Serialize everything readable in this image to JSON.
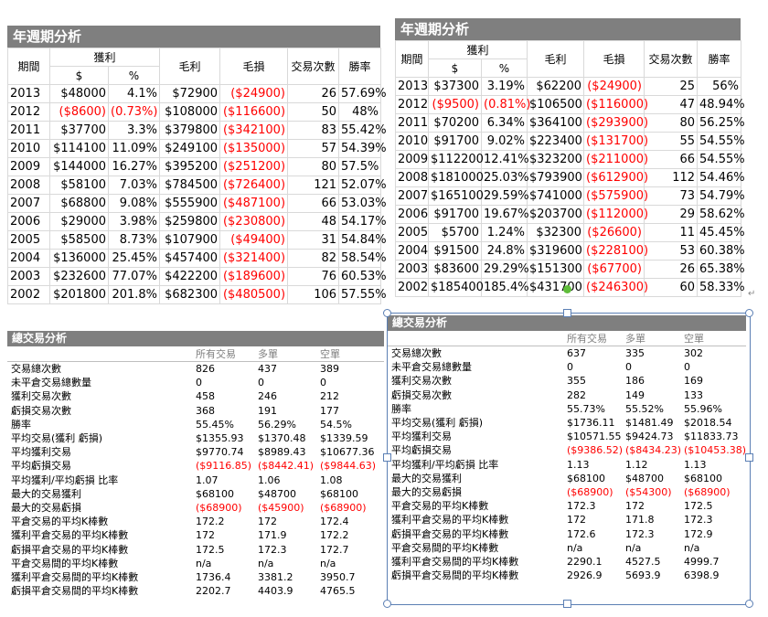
{
  "annual_left": {
    "title": "年週期分析",
    "headers": {
      "period": "期間",
      "profit": "獲利",
      "dollar": "$",
      "pct": "%",
      "gross_profit": "毛利",
      "gross_loss": "毛損",
      "trades": "交易次數",
      "win_rate": "勝率"
    },
    "rows": [
      [
        "2013",
        "$48000",
        "4.1%",
        "$72900",
        "($24900)",
        "26",
        "57.69%"
      ],
      [
        "2012",
        "($8600)",
        "(0.73%)",
        "$108000",
        "($116600)",
        "50",
        "48%"
      ],
      [
        "2011",
        "$37700",
        "3.3%",
        "$379800",
        "($342100)",
        "83",
        "55.42%"
      ],
      [
        "2010",
        "$114100",
        "11.09%",
        "$249100",
        "($135000)",
        "57",
        "54.39%"
      ],
      [
        "2009",
        "$144000",
        "16.27%",
        "$395200",
        "($251200)",
        "80",
        "57.5%"
      ],
      [
        "2008",
        "$58100",
        "7.03%",
        "$784500",
        "($726400)",
        "121",
        "52.07%"
      ],
      [
        "2007",
        "$68800",
        "9.08%",
        "$555900",
        "($487100)",
        "66",
        "53.03%"
      ],
      [
        "2006",
        "$29000",
        "3.98%",
        "$259800",
        "($230800)",
        "48",
        "54.17%"
      ],
      [
        "2005",
        "$58500",
        "8.73%",
        "$107900",
        "($49400)",
        "31",
        "54.84%"
      ],
      [
        "2004",
        "$136000",
        "25.45%",
        "$457400",
        "($321400)",
        "82",
        "58.54%"
      ],
      [
        "2003",
        "$232600",
        "77.07%",
        "$422200",
        "($189600)",
        "76",
        "60.53%"
      ],
      [
        "2002",
        "$201800",
        "201.8%",
        "$682300",
        "($480500)",
        "106",
        "57.55%"
      ]
    ]
  },
  "annual_right": {
    "title": "年週期分析",
    "headers": {
      "period": "期間",
      "profit": "獲利",
      "dollar": "$",
      "pct": "%",
      "gross_profit": "毛利",
      "gross_loss": "毛損",
      "trades": "交易次數",
      "win_rate": "勝率"
    },
    "rows": [
      [
        "2013",
        "$37300",
        "3.19%",
        "$62200",
        "($24900)",
        "25",
        "56%"
      ],
      [
        "2012",
        "($9500)",
        "(0.81%)",
        "$106500",
        "($116000)",
        "47",
        "48.94%"
      ],
      [
        "2011",
        "$70200",
        "6.34%",
        "$364100",
        "($293900)",
        "80",
        "56.25%"
      ],
      [
        "2010",
        "$91700",
        "9.02%",
        "$223400",
        "($131700)",
        "55",
        "54.55%"
      ],
      [
        "2009",
        "$112200",
        "12.41%",
        "$323200",
        "($211000)",
        "66",
        "54.55%"
      ],
      [
        "2008",
        "$181000",
        "25.03%",
        "$793900",
        "($612900)",
        "112",
        "54.46%"
      ],
      [
        "2007",
        "$165100",
        "29.59%",
        "$741000",
        "($575900)",
        "73",
        "54.79%"
      ],
      [
        "2006",
        "$91700",
        "19.67%",
        "$203700",
        "($112000)",
        "29",
        "58.62%"
      ],
      [
        "2005",
        "$5700",
        "1.24%",
        "$32300",
        "($26600)",
        "11",
        "45.45%"
      ],
      [
        "2004",
        "$91500",
        "24.8%",
        "$319600",
        "($228100)",
        "53",
        "60.38%"
      ],
      [
        "2003",
        "$83600",
        "29.29%",
        "$151300",
        "($67700)",
        "26",
        "65.38%"
      ],
      [
        "2002",
        "$185400",
        "185.4%",
        "$431700",
        "($246300)",
        "60",
        "58.33%"
      ]
    ]
  },
  "total_left": {
    "title": "總交易分析",
    "cols": [
      "所有交易",
      "多單",
      "空單"
    ],
    "rows": [
      [
        "交易總次數",
        "826",
        "437",
        "389"
      ],
      [
        "未平倉交易總數量",
        "0",
        "0",
        "0"
      ],
      [
        "獲利交易次數",
        "458",
        "246",
        "212"
      ],
      [
        "虧損交易次數",
        "368",
        "191",
        "177"
      ],
      [
        "勝率",
        "55.45%",
        "56.29%",
        "54.5%"
      ],
      [
        "平均交易(獲利 虧損)",
        "$1355.93",
        "$1370.48",
        "$1339.59"
      ],
      [
        "平均獲利交易",
        "$9770.74",
        "$8989.43",
        "$10677.36"
      ],
      [
        "平均虧損交易",
        "($9116.85)",
        "($8442.41)",
        "($9844.63)"
      ],
      [
        "平均獲利/平均虧損 比率",
        "1.07",
        "1.06",
        "1.08"
      ],
      [
        "最大的交易獲利",
        "$68100",
        "$48700",
        "$68100"
      ],
      [
        "最大的交易虧損",
        "($68900)",
        "($45900)",
        "($68900)"
      ],
      [
        "平倉交易的平均K棒數",
        "172.2",
        "172",
        "172.4"
      ],
      [
        "獲利平倉交易的平均K棒數",
        "172",
        "171.9",
        "172.2"
      ],
      [
        "虧損平倉交易的平均K棒數",
        "172.5",
        "172.3",
        "172.7"
      ],
      [
        "平倉交易間的平均K棒數",
        "n/a",
        "n/a",
        "n/a"
      ],
      [
        "獲利平倉交易間的平均K棒數",
        "1736.4",
        "3381.2",
        "3950.7"
      ],
      [
        "虧損平倉交易間的平均K棒數",
        "2202.7",
        "4403.9",
        "4765.5"
      ]
    ]
  },
  "total_right": {
    "title": "總交易分析",
    "cols": [
      "所有交易",
      "多單",
      "空單"
    ],
    "rows": [
      [
        "交易總次數",
        "637",
        "335",
        "302"
      ],
      [
        "未平倉交易總數量",
        "0",
        "0",
        "0"
      ],
      [
        "獲利交易次數",
        "355",
        "186",
        "169"
      ],
      [
        "虧損交易次數",
        "282",
        "149",
        "133"
      ],
      [
        "勝率",
        "55.73%",
        "55.52%",
        "55.96%"
      ],
      [
        "平均交易(獲利 虧損)",
        "$1736.11",
        "$1481.49",
        "$2018.54"
      ],
      [
        "平均獲利交易",
        "$10571.55",
        "$9424.73",
        "$11833.73"
      ],
      [
        "平均虧損交易",
        "($9386.52)",
        "($8434.23)",
        "($10453.38)"
      ],
      [
        "平均獲利/平均虧損 比率",
        "1.13",
        "1.12",
        "1.13"
      ],
      [
        "最大的交易獲利",
        "$68100",
        "$48700",
        "$68100"
      ],
      [
        "最大的交易虧損",
        "($68900)",
        "($54300)",
        "($68900)"
      ],
      [
        "平倉交易的平均K棒數",
        "172.3",
        "172",
        "172.5"
      ],
      [
        "獲利平倉交易的平均K棒數",
        "172",
        "171.8",
        "172.3"
      ],
      [
        "虧損平倉交易的平均K棒數",
        "172.6",
        "172.3",
        "172.9"
      ],
      [
        "平倉交易間的平均K棒數",
        "n/a",
        "n/a",
        "n/a"
      ],
      [
        "獲利平倉交易間的平均K棒數",
        "2290.1",
        "4527.5",
        "4999.7"
      ],
      [
        "虧損平倉交易間的平均K棒數",
        "2926.9",
        "5693.9",
        "6398.9"
      ]
    ]
  },
  "paragraph_mark": "↵",
  "colors": {
    "header_bg": "#7f7f7f",
    "negative": "#ff0000",
    "selection": "#5b7fb4",
    "rotate_handle": "#5fbd3a"
  }
}
